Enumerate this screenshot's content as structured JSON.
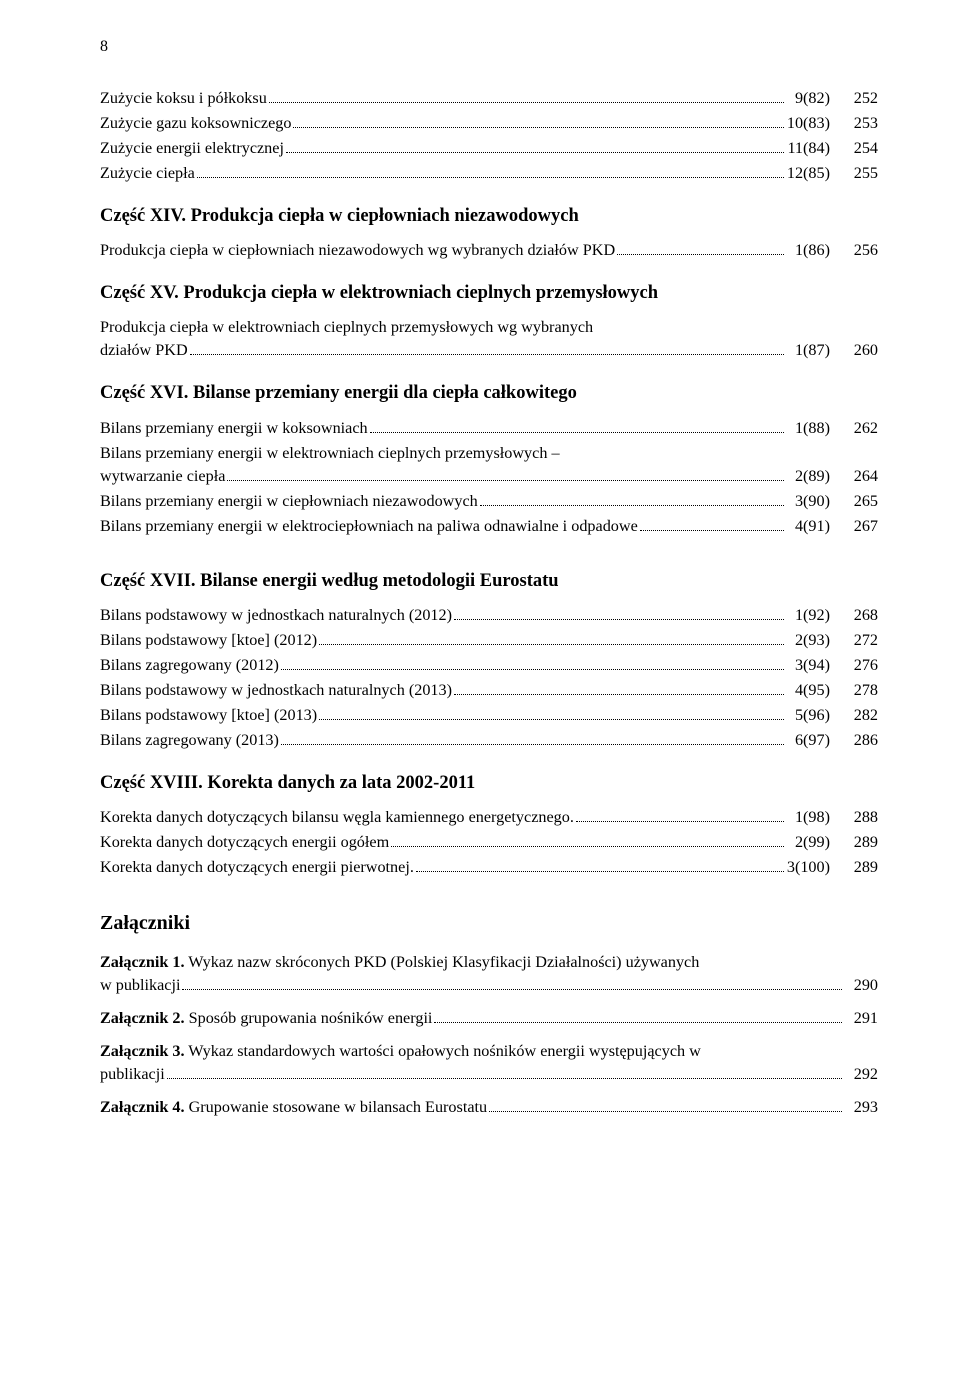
{
  "page_number": "8",
  "top_entries": [
    {
      "label": "Zużycie koksu i półkoksu",
      "ref": "9(82)",
      "page": "252"
    },
    {
      "label": "Zużycie gazu koksowniczego",
      "ref": "10(83)",
      "page": "253"
    },
    {
      "label": "Zużycie energii elektrycznej",
      "ref": "11(84)",
      "page": "254"
    },
    {
      "label": "Zużycie ciepła",
      "ref": "12(85)",
      "page": "255"
    }
  ],
  "section_xiv": {
    "heading": "Część XIV. Produkcja ciepła w ciepłowniach niezawodowych",
    "entry": {
      "label": "Produkcja ciepła w ciepłowniach niezawodowych wg wybranych działów PKD",
      "ref": "1(86)",
      "page": "256"
    }
  },
  "section_xv": {
    "heading": "Część XV. Produkcja ciepła w elektrowniach cieplnych przemysłowych",
    "entry_line1": "Produkcja ciepła w elektrowniach cieplnych przemysłowych wg wybranych",
    "entry_line2": "działów PKD",
    "entry_ref": "1(87)",
    "entry_page": "260"
  },
  "section_xvi": {
    "heading": "Część XVI. Bilanse przemiany energii dla ciepła całkowitego",
    "entries": [
      {
        "label": "Bilans przemiany energii w koksowniach",
        "ref": "1(88)",
        "page": "262"
      }
    ],
    "multi": {
      "line1": "Bilans przemiany energii w elektrowniach cieplnych przemysłowych –",
      "line2": "wytwarzanie ciepła",
      "ref": "2(89)",
      "page": "264"
    },
    "rest": [
      {
        "label": "Bilans przemiany energii w ciepłowniach niezawodowych",
        "ref": "3(90)",
        "page": "265"
      },
      {
        "label": "Bilans przemiany energii w elektrociepłowniach na paliwa odnawialne i odpadowe",
        "ref": "4(91)",
        "page": "267"
      }
    ]
  },
  "section_xvii": {
    "heading": "Część XVII. Bilanse energii według metodologii Eurostatu",
    "entries": [
      {
        "label": "Bilans podstawowy w jednostkach naturalnych (2012)",
        "ref": "1(92)",
        "page": "268"
      },
      {
        "label": "Bilans podstawowy [ktoe] (2012)",
        "ref": "2(93)",
        "page": "272"
      },
      {
        "label": "Bilans zagregowany (2012)",
        "ref": "3(94)",
        "page": "276"
      },
      {
        "label": "Bilans podstawowy w jednostkach naturalnych (2013)",
        "ref": "4(95)",
        "page": "278"
      },
      {
        "label": "Bilans podstawowy [ktoe] (2013)",
        "ref": "5(96)",
        "page": "282"
      },
      {
        "label": "Bilans zagregowany (2013)",
        "ref": "6(97)",
        "page": "286"
      }
    ]
  },
  "section_xviii": {
    "heading": "Część XVIII. Korekta danych za lata 2002-2011",
    "entries": [
      {
        "label": "Korekta danych dotyczących bilansu węgla kamiennego energetycznego.",
        "ref": "1(98)",
        "page": "288"
      },
      {
        "label": "Korekta danych dotyczących energii ogółem",
        "ref": "2(99)",
        "page": "289"
      },
      {
        "label": "Korekta danych dotyczących energii pierwotnej.",
        "ref": "3(100)",
        "page": "289"
      }
    ]
  },
  "attachments": {
    "title": "Załączniki",
    "items": [
      {
        "bold": "Załącznik 1.",
        "run": " Wykaz nazw skróconych PKD (Polskiej Klasyfikacji Działalności) używanych",
        "line2": "w publikacji",
        "page": "290"
      },
      {
        "bold": "Załącznik 2.",
        "run": " Sposób grupowania nośników energii",
        "page": "291"
      },
      {
        "bold": "Załącznik 3.",
        "run": " Wykaz standardowych wartości opałowych nośników energii występujących w",
        "line2": "publikacji",
        "page": "292"
      },
      {
        "bold": "Załącznik 4.",
        "run": " Grupowanie stosowane w bilansach Eurostatu",
        "page": "293"
      }
    ]
  }
}
